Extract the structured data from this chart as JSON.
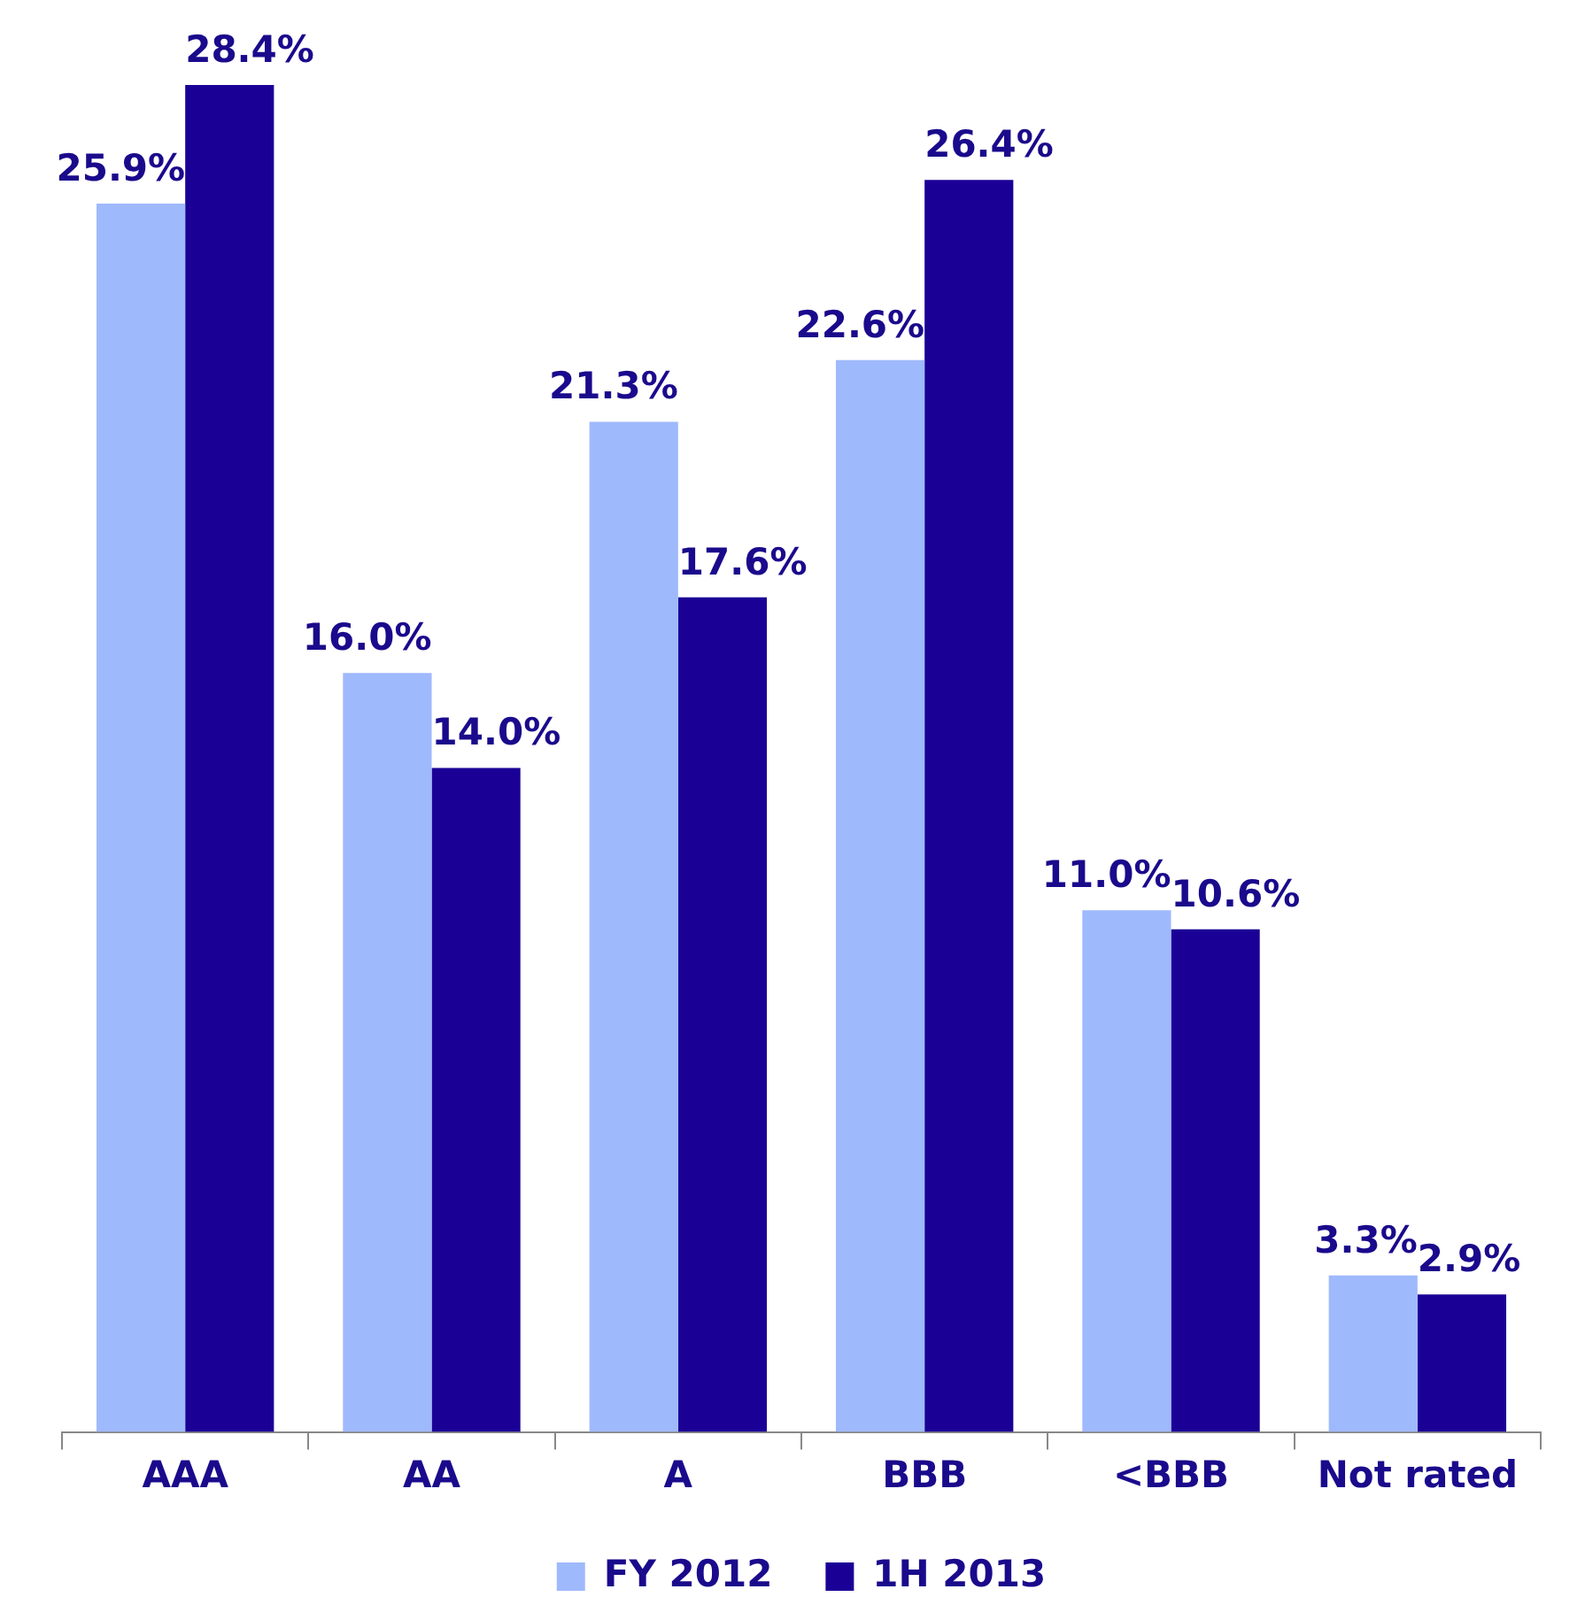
{
  "chart_data": {
    "type": "bar",
    "categories": [
      "AAA",
      "AA",
      "A",
      "BBB",
      "<BBB",
      "Not rated"
    ],
    "series": [
      {
        "name": "FY 2012",
        "color": "#9fb9fd",
        "values": [
          25.9,
          16.0,
          21.3,
          22.6,
          11.0,
          3.3
        ],
        "value_labels": [
          "25.9%",
          "16.0%",
          "21.3%",
          "22.6%",
          "11.0%",
          "3.3%"
        ]
      },
      {
        "name": "1H 2013",
        "color": "#1b0096",
        "values": [
          28.4,
          14.0,
          17.6,
          26.4,
          10.6,
          2.9
        ],
        "value_labels": [
          "28.4%",
          "14.0%",
          "17.6%",
          "26.4%",
          "10.6%",
          "2.9%"
        ]
      }
    ],
    "legend": "bottom"
  }
}
